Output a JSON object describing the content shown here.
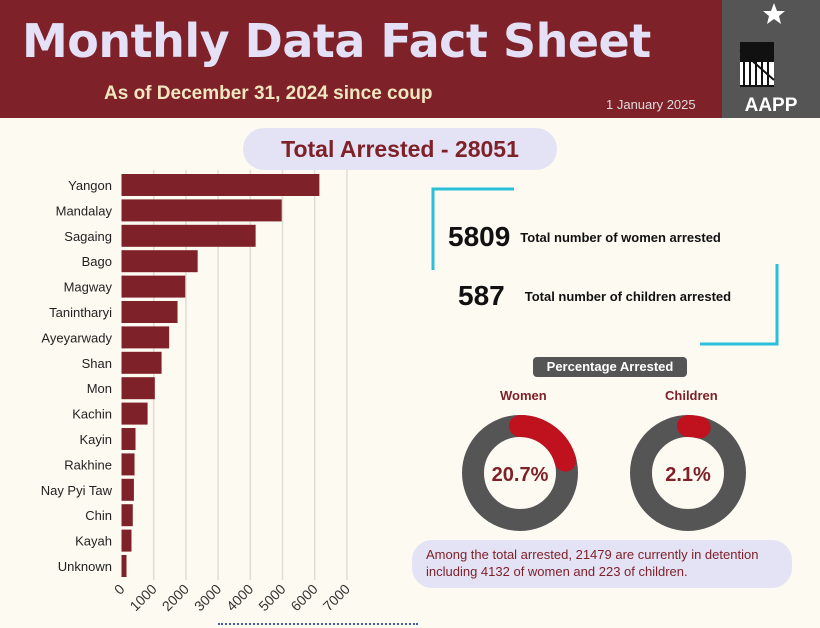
{
  "header": {
    "title": "Monthly Data Fact Sheet",
    "subtitle": "As of December 31, 2024 since coup",
    "date": "1 January 2025",
    "logo_text": "AAPP"
  },
  "total_arrested": "Total Arrested - 28051",
  "stats": [
    {
      "value": "5809",
      "label": "Total number of women arrested"
    },
    {
      "value": "587",
      "label": "Total number of children arrested"
    }
  ],
  "percentage": {
    "title": "Percentage Arrested",
    "women": {
      "label": "Women",
      "value": "20.7%",
      "fraction": 0.207
    },
    "children": {
      "label": "Children",
      "value": "2.1%",
      "fraction": 0.021
    }
  },
  "note": "Among the total arrested, 21479 are currently in detention including 4132 of women and 223 of children.",
  "colors": {
    "brand": "#7e2128",
    "accent": "#2bc0d9",
    "donut_bg": "#555555",
    "donut_fill": "#c0111f"
  },
  "chart_data": {
    "type": "bar",
    "orientation": "horizontal",
    "categories": [
      "Yangon",
      "Mandalay",
      "Sagaing",
      "Bago",
      "Magway",
      "Tanintharyi",
      "Ayeyarwady",
      "Shan",
      "Mon",
      "Kachin",
      "Kayin",
      "Rakhine",
      "Nay Pyi Taw",
      "Chin",
      "Kayah",
      "Unknown"
    ],
    "values": [
      6145,
      4975,
      4165,
      2365,
      1980,
      1740,
      1480,
      1245,
      1035,
      810,
      435,
      405,
      385,
      350,
      310,
      155
    ],
    "xlim": [
      0,
      7000
    ],
    "xticks": [
      "0",
      "1000",
      "2000",
      "3000",
      "4000",
      "5000",
      "6000",
      "7000"
    ],
    "grid": true,
    "bar_color": "#7e2128"
  }
}
